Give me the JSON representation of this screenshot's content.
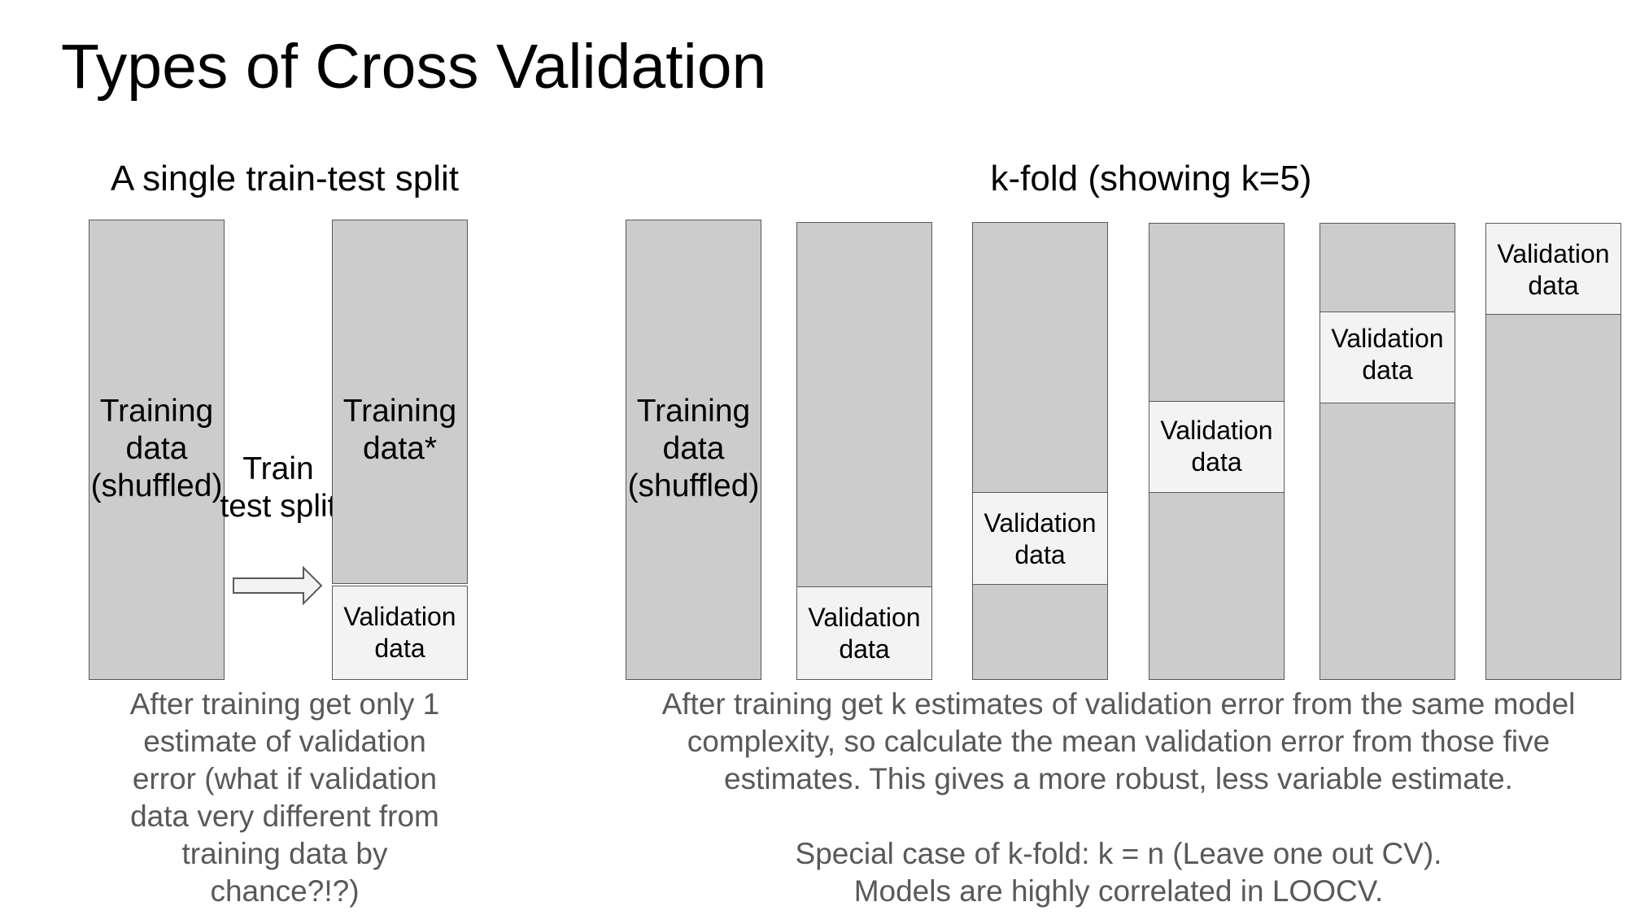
{
  "title": "Types of Cross Validation",
  "left": {
    "heading": "A single train-test split",
    "shuffled_label": "Training\ndata\n(shuffled)",
    "arrow_label": "Train\ntest split",
    "training_label": "Training\ndata*",
    "validation_label": "Validation\ndata",
    "caption": "After training get only 1\nestimate of validation\nerror (what if validation\ndata very different from\ntraining data by\nchance?!?)"
  },
  "right": {
    "heading": "k-fold (showing k=5)",
    "shuffled_label": "Training\ndata\n(shuffled)",
    "fold_validation_label": "Validation\ndata",
    "caption": "After training get k estimates of validation error from the same model\ncomplexity, so calculate the mean validation error from those five\nestimates.  This gives a more robust, less variable estimate.\n\nSpecial case of k-fold: k = n (Leave one out CV).\nModels are highly correlated in LOOCV."
  },
  "colors": {
    "training": "#cccccc",
    "validation": "#f3f3f3",
    "border": "#595959",
    "caption_text": "#595959"
  }
}
